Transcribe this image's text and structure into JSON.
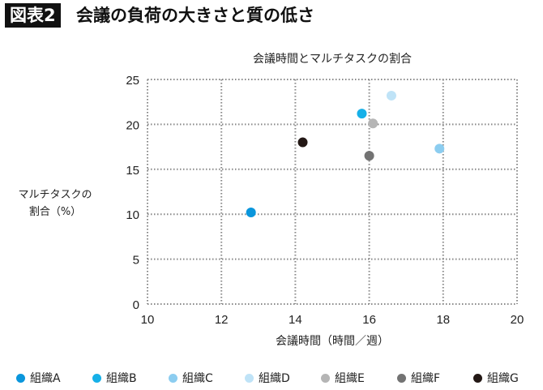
{
  "figure_label": "図表2",
  "figure_title": "会議の負荷の大きさと質の低さ",
  "chart_data": {
    "type": "scatter",
    "title": "会議時間とマルチタスクの割合",
    "xlabel": "会議時間（時間／週）",
    "ylabel": "マルチタスクの割合（%）",
    "xlim": [
      10,
      20
    ],
    "ylim": [
      0,
      25
    ],
    "xticks": [
      10,
      12,
      14,
      16,
      18,
      20
    ],
    "yticks": [
      0,
      5,
      10,
      15,
      20,
      25
    ],
    "grid": true,
    "legend": "bottom",
    "series": [
      {
        "name": "組織A",
        "color": "#0a96dc",
        "x": 12.8,
        "y": 10.2
      },
      {
        "name": "組織B",
        "color": "#16b0e8",
        "x": 15.8,
        "y": 21.2
      },
      {
        "name": "組織C",
        "color": "#8ccdf0",
        "x": 17.9,
        "y": 17.3
      },
      {
        "name": "組織D",
        "color": "#bfe3f7",
        "x": 16.6,
        "y": 23.2
      },
      {
        "name": "組織E",
        "color": "#b5b5b5",
        "x": 16.1,
        "y": 20.1
      },
      {
        "name": "組織F",
        "color": "#737373",
        "x": 16.0,
        "y": 16.5
      },
      {
        "name": "組織G",
        "color": "#231815",
        "x": 14.2,
        "y": 18.0
      }
    ]
  }
}
